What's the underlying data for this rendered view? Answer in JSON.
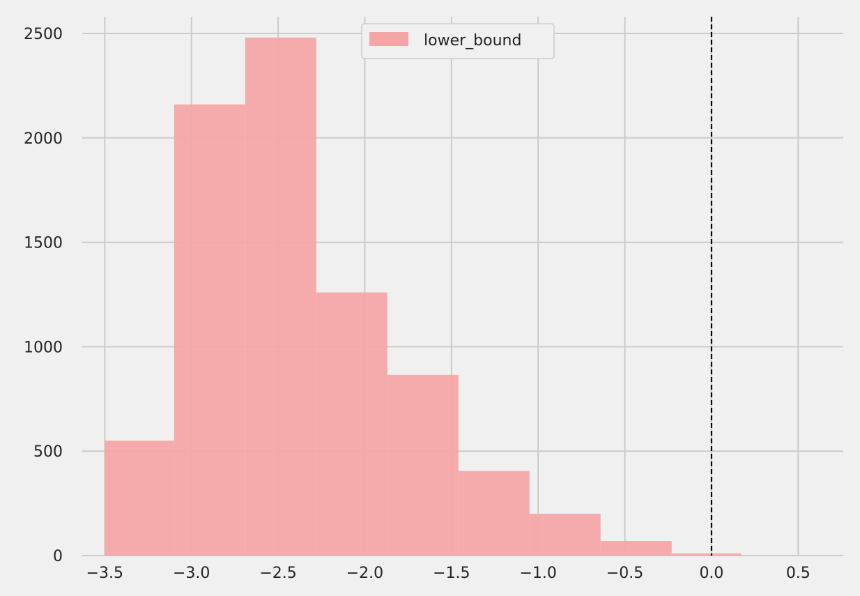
{
  "chart_data": {
    "type": "bar",
    "title": "",
    "xlabel": "",
    "ylabel": "",
    "bins": [
      {
        "x0": -3.5,
        "x1": -3.1,
        "count": 550
      },
      {
        "x0": -3.1,
        "x1": -2.69,
        "count": 2160
      },
      {
        "x0": -2.69,
        "x1": -2.28,
        "count": 2480
      },
      {
        "x0": -2.28,
        "x1": -1.87,
        "count": 1260
      },
      {
        "x0": -1.87,
        "x1": -1.46,
        "count": 865
      },
      {
        "x0": -1.46,
        "x1": -1.05,
        "count": 405
      },
      {
        "x0": -1.05,
        "x1": -0.64,
        "count": 200
      },
      {
        "x0": -0.64,
        "x1": -0.23,
        "count": 70
      },
      {
        "x0": -0.23,
        "x1": 0.17,
        "count": 10
      }
    ],
    "series": [
      {
        "name": "lower_bound",
        "color": "#f4a6a7"
      }
    ],
    "xlim": [
      -3.63,
      0.76
    ],
    "ylim": [
      0,
      2580
    ],
    "xticks": [
      -3.5,
      -3.0,
      -2.5,
      -2.0,
      -1.5,
      -1.0,
      -0.5,
      0.0,
      0.5
    ],
    "xtick_labels": [
      "−3.5",
      "−3.0",
      "−2.5",
      "−2.0",
      "−1.5",
      "−1.0",
      "−0.5",
      "0.0",
      "0.5"
    ],
    "yticks": [
      0,
      500,
      1000,
      1500,
      2000,
      2500
    ],
    "ytick_labels": [
      "0",
      "500",
      "1000",
      "1500",
      "2000",
      "2500"
    ],
    "reference_line": {
      "x": 0.0,
      "style": "dashed",
      "color": "#000000"
    },
    "grid": true,
    "legend": {
      "placement": "top-center",
      "entries": [
        "lower_bound"
      ]
    }
  }
}
